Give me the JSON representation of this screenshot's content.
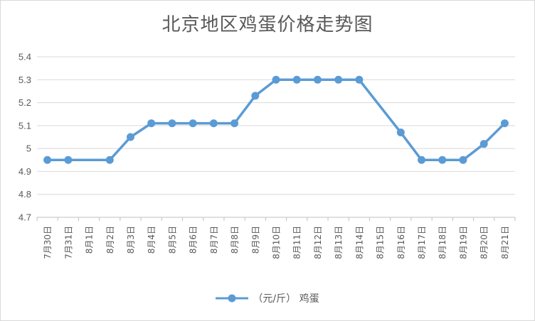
{
  "chart_data": {
    "type": "line",
    "title": "北京地区鸡蛋价格走势图",
    "categories": [
      "7月30日",
      "7月31日",
      "8月1日",
      "8月2日",
      "8月3日",
      "8月4日",
      "8月5日",
      "8月6日",
      "8月7日",
      "8月8日",
      "8月9日",
      "8月10日",
      "8月11日",
      "8月12日",
      "8月13日",
      "8月14日",
      "8月15日",
      "8月16日",
      "8月17日",
      "8月18日",
      "8月19日",
      "8月20日",
      "8月21日"
    ],
    "series": [
      {
        "name": "（元/斤） 鸡蛋",
        "color": "#5b9bd5",
        "values": [
          4.95,
          4.95,
          null,
          4.95,
          5.05,
          5.11,
          5.11,
          5.11,
          5.11,
          5.11,
          5.23,
          5.3,
          5.3,
          5.3,
          5.3,
          5.3,
          null,
          5.07,
          4.95,
          4.95,
          4.95,
          5.02,
          5.11
        ]
      }
    ],
    "ylim": [
      4.7,
      5.4
    ],
    "yticks": [
      "4.7",
      "4.8",
      "4.9",
      "5",
      "5.1",
      "5.2",
      "5.3",
      "5.4"
    ],
    "grid": true,
    "legend_position": "bottom"
  }
}
